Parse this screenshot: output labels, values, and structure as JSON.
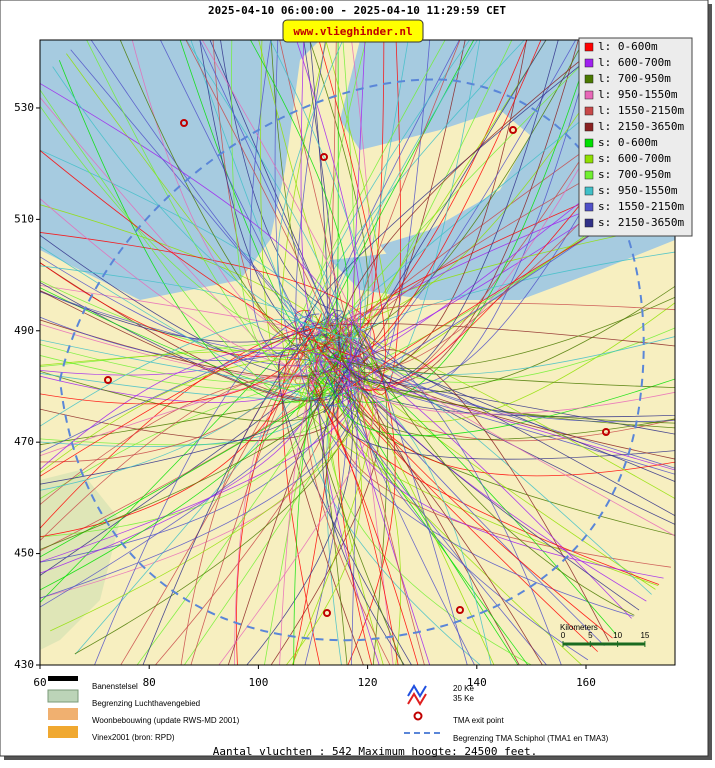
{
  "title": "2025-04-10 06:00:00 - 2025-04-10 11:29:59 CET",
  "site": "www.vlieghinder.nl",
  "map": {
    "xlim": [
      60,
      176.3
    ],
    "ylim": [
      430,
      542.2
    ],
    "xticks": [
      60,
      80,
      100,
      120,
      140,
      160
    ],
    "yticks": [
      430,
      450,
      470,
      490,
      510,
      530
    ]
  },
  "legend": [
    {
      "label": "l: 0-600m",
      "color": "#ff0000"
    },
    {
      "label": "l: 600-700m",
      "color": "#a020f0"
    },
    {
      "label": "l: 700-950m",
      "color": "#4b7a00"
    },
    {
      "label": "l: 950-1550m",
      "color": "#e868b8"
    },
    {
      "label": "l: 1550-2150m",
      "color": "#c84848"
    },
    {
      "label": "l: 2150-3650m",
      "color": "#8b2222"
    },
    {
      "label": "s: 0-600m",
      "color": "#00e000"
    },
    {
      "label": "s: 600-700m",
      "color": "#90e000"
    },
    {
      "label": "s: 700-950m",
      "color": "#70f030"
    },
    {
      "label": "s: 950-1550m",
      "color": "#40c0c8"
    },
    {
      "label": "s: 1550-2150m",
      "color": "#5050c8"
    },
    {
      "label": "s: 2150-3650m",
      "color": "#303088"
    }
  ],
  "map_legend": {
    "runways": "Banenstelsel",
    "airport_boundary": "Begrenzing Luchthavengebied",
    "housing": "Woonbebouwing (update RWS-MD 2001)",
    "vinex": "Vinex2001 (bron: RPD)",
    "wind_20": "20 Ke",
    "wind_35": "35 Ke",
    "exit_point": "TMA exit point",
    "tma_boundary": "Begrenzing TMA Schiphol  (TMA1 en TMA3)",
    "scale_title": "Kilometers",
    "scale_ticks": [
      0,
      5,
      10,
      15
    ]
  },
  "footer": "Aantal vluchten : 542 Maximum hoogte: 24500 feet."
}
